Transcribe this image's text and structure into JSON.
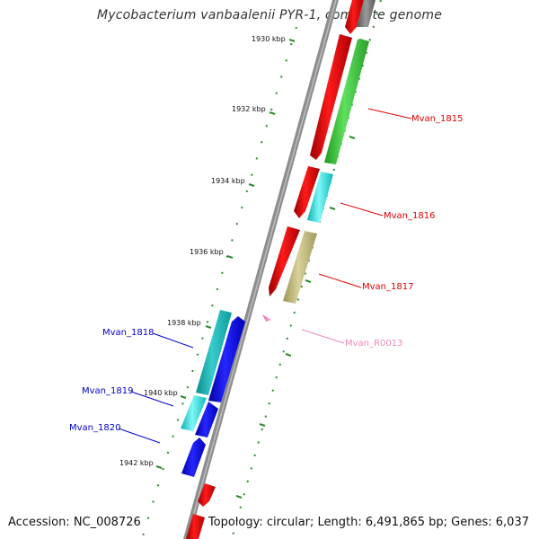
{
  "title": "Mycobacterium vanbaalenii PYR-1, complete genome",
  "footer": {
    "accession": "Accession: NC_008726",
    "topology": "Topology: circular; Length: 6,491,865 bp; Genes: 6,037"
  },
  "ticks": [
    "1930 kbp",
    "1932 kbp",
    "1934 kbp",
    "1936 kbp",
    "1938 kbp",
    "1940 kbp",
    "1942 kbp"
  ],
  "gene_labels": {
    "mvan_1815": "Mvan_1815",
    "mvan_1816": "Mvan_1816",
    "mvan_1817": "Mvan_1817",
    "mvan_r0013": "Mvan_R0013",
    "mvan_1818": "Mvan_1818",
    "mvan_1819": "Mvan_1819",
    "mvan_1820": "Mvan_1820"
  },
  "colors": {
    "backbone": "#8a8a8a",
    "tick": "#2e8b2e",
    "red_label": "#dd0000",
    "blue_label": "#0000cc",
    "pink_label": "#ee88bb"
  }
}
